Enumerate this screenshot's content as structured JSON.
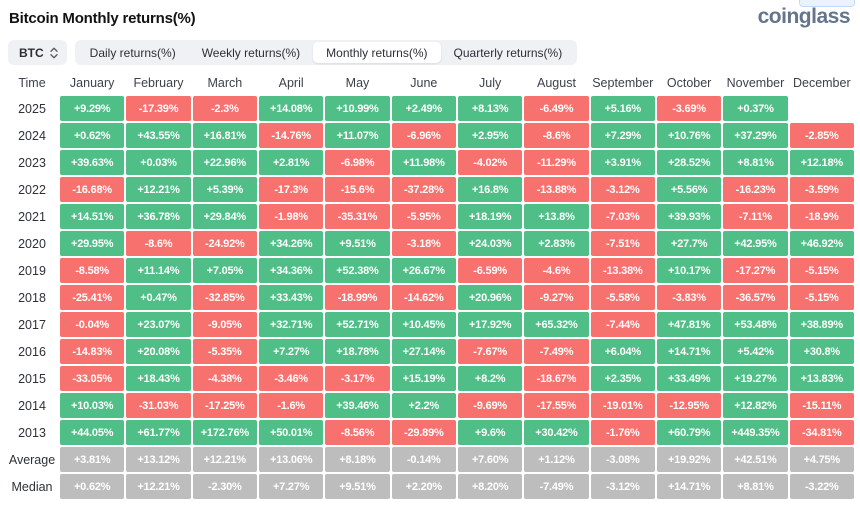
{
  "header": {
    "title": "Bitcoin Monthly returns(%)",
    "brand": "coinglass"
  },
  "toolbar": {
    "coin": "BTC",
    "tabs": [
      {
        "label": "Daily returns(%)",
        "active": false
      },
      {
        "label": "Weekly returns(%)",
        "active": false
      },
      {
        "label": "Monthly returns(%)",
        "active": true
      },
      {
        "label": "Quarterly returns(%)",
        "active": false
      }
    ]
  },
  "colors": {
    "positive": "#4FBE87",
    "negative": "#F7716E",
    "neutral": "#BDBDBD"
  },
  "chart_data": {
    "type": "heatmap",
    "title": "Bitcoin Monthly returns(%)",
    "legend_position": "none",
    "columns": [
      "Time",
      "January",
      "February",
      "March",
      "April",
      "May",
      "June",
      "July",
      "August",
      "September",
      "October",
      "November",
      "December"
    ],
    "rows": [
      {
        "label": "2025",
        "values": [
          "+9.29%",
          "-17.39%",
          "-2.3%",
          "+14.08%",
          "+10.99%",
          "+2.49%",
          "+8.13%",
          "-6.49%",
          "+5.16%",
          "-3.69%",
          "+0.37%",
          null
        ]
      },
      {
        "label": "2024",
        "values": [
          "+0.62%",
          "+43.55%",
          "+16.81%",
          "-14.76%",
          "+11.07%",
          "-6.96%",
          "+2.95%",
          "-8.6%",
          "+7.29%",
          "+10.76%",
          "+37.29%",
          "-2.85%"
        ]
      },
      {
        "label": "2023",
        "values": [
          "+39.63%",
          "+0.03%",
          "+22.96%",
          "+2.81%",
          "-6.98%",
          "+11.98%",
          "-4.02%",
          "-11.29%",
          "+3.91%",
          "+28.52%",
          "+8.81%",
          "+12.18%"
        ]
      },
      {
        "label": "2022",
        "values": [
          "-16.68%",
          "+12.21%",
          "+5.39%",
          "-17.3%",
          "-15.6%",
          "-37.28%",
          "+16.8%",
          "-13.88%",
          "-3.12%",
          "+5.56%",
          "-16.23%",
          "-3.59%"
        ]
      },
      {
        "label": "2021",
        "values": [
          "+14.51%",
          "+36.78%",
          "+29.84%",
          "-1.98%",
          "-35.31%",
          "-5.95%",
          "+18.19%",
          "+13.8%",
          "-7.03%",
          "+39.93%",
          "-7.11%",
          "-18.9%"
        ]
      },
      {
        "label": "2020",
        "values": [
          "+29.95%",
          "-8.6%",
          "-24.92%",
          "+34.26%",
          "+9.51%",
          "-3.18%",
          "+24.03%",
          "+2.83%",
          "-7.51%",
          "+27.7%",
          "+42.95%",
          "+46.92%"
        ]
      },
      {
        "label": "2019",
        "values": [
          "-8.58%",
          "+11.14%",
          "+7.05%",
          "+34.36%",
          "+52.38%",
          "+26.67%",
          "-6.59%",
          "-4.6%",
          "-13.38%",
          "+10.17%",
          "-17.27%",
          "-5.15%"
        ]
      },
      {
        "label": "2018",
        "values": [
          "-25.41%",
          "+0.47%",
          "-32.85%",
          "+33.43%",
          "-18.99%",
          "-14.62%",
          "+20.96%",
          "-9.27%",
          "-5.58%",
          "-3.83%",
          "-36.57%",
          "-5.15%"
        ]
      },
      {
        "label": "2017",
        "values": [
          "-0.04%",
          "+23.07%",
          "-9.05%",
          "+32.71%",
          "+52.71%",
          "+10.45%",
          "+17.92%",
          "+65.32%",
          "-7.44%",
          "+47.81%",
          "+53.48%",
          "+38.89%"
        ]
      },
      {
        "label": "2016",
        "values": [
          "-14.83%",
          "+20.08%",
          "-5.35%",
          "+7.27%",
          "+18.78%",
          "+27.14%",
          "-7.67%",
          "-7.49%",
          "+6.04%",
          "+14.71%",
          "+5.42%",
          "+30.8%"
        ]
      },
      {
        "label": "2015",
        "values": [
          "-33.05%",
          "+18.43%",
          "-4.38%",
          "-3.46%",
          "-3.17%",
          "+15.19%",
          "+8.2%",
          "-18.67%",
          "+2.35%",
          "+33.49%",
          "+19.27%",
          "+13.83%"
        ]
      },
      {
        "label": "2014",
        "values": [
          "+10.03%",
          "-31.03%",
          "-17.25%",
          "-1.6%",
          "+39.46%",
          "+2.2%",
          "-9.69%",
          "-17.55%",
          "-19.01%",
          "-12.95%",
          "+12.82%",
          "-15.11%"
        ]
      },
      {
        "label": "2013",
        "values": [
          "+44.05%",
          "+61.77%",
          "+172.76%",
          "+50.01%",
          "-8.56%",
          "-29.89%",
          "+9.6%",
          "+30.42%",
          "-1.76%",
          "+60.79%",
          "+449.35%",
          "-34.81%"
        ]
      },
      {
        "label": "Average",
        "values": [
          "+3.81%",
          "+13.12%",
          "+12.21%",
          "+13.06%",
          "+8.18%",
          "-0.14%",
          "+7.60%",
          "+1.12%",
          "-3.08%",
          "+19.92%",
          "+42.51%",
          "+4.75%"
        ]
      },
      {
        "label": "Median",
        "values": [
          "+0.62%",
          "+12.21%",
          "-2.30%",
          "+7.27%",
          "+9.51%",
          "+2.20%",
          "+8.20%",
          "-7.49%",
          "-3.12%",
          "+14.71%",
          "+8.81%",
          "-3.22%"
        ]
      }
    ]
  }
}
